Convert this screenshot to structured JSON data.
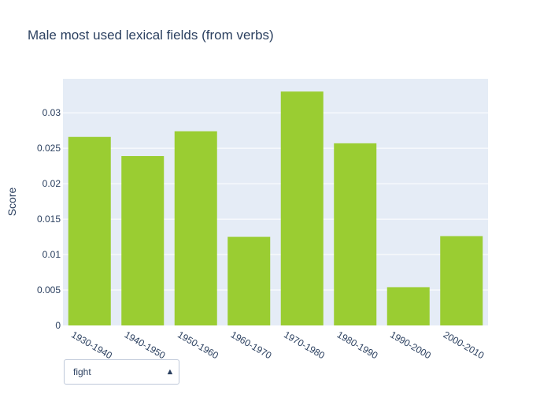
{
  "chart_data": {
    "type": "bar",
    "title": "Male most used lexical fields (from verbs)",
    "xlabel": "",
    "ylabel": "Score",
    "categories": [
      "1930-1940",
      "1940-1950",
      "1950-1960",
      "1960-1970",
      "1970-1980",
      "1980-1990",
      "1990-2000",
      "2000-2010"
    ],
    "values": [
      0.0266,
      0.0239,
      0.0274,
      0.0125,
      0.033,
      0.0257,
      0.0054,
      0.0126
    ],
    "ylim": [
      0,
      0.0348
    ],
    "yticks": [
      0,
      0.005,
      0.01,
      0.015,
      0.02,
      0.025,
      0.03
    ],
    "ytick_labels": [
      "0",
      "0.005",
      "0.01",
      "0.015",
      "0.02",
      "0.025",
      "0.03"
    ],
    "grid": true,
    "colors": {
      "bar": "#9acd32",
      "plot_bg": "#e5ecf6",
      "grid": "#ffffff",
      "text": "#2a3f5f"
    }
  },
  "dropdown": {
    "selected": "fight",
    "arrow_icon": "triangle-up-icon"
  }
}
